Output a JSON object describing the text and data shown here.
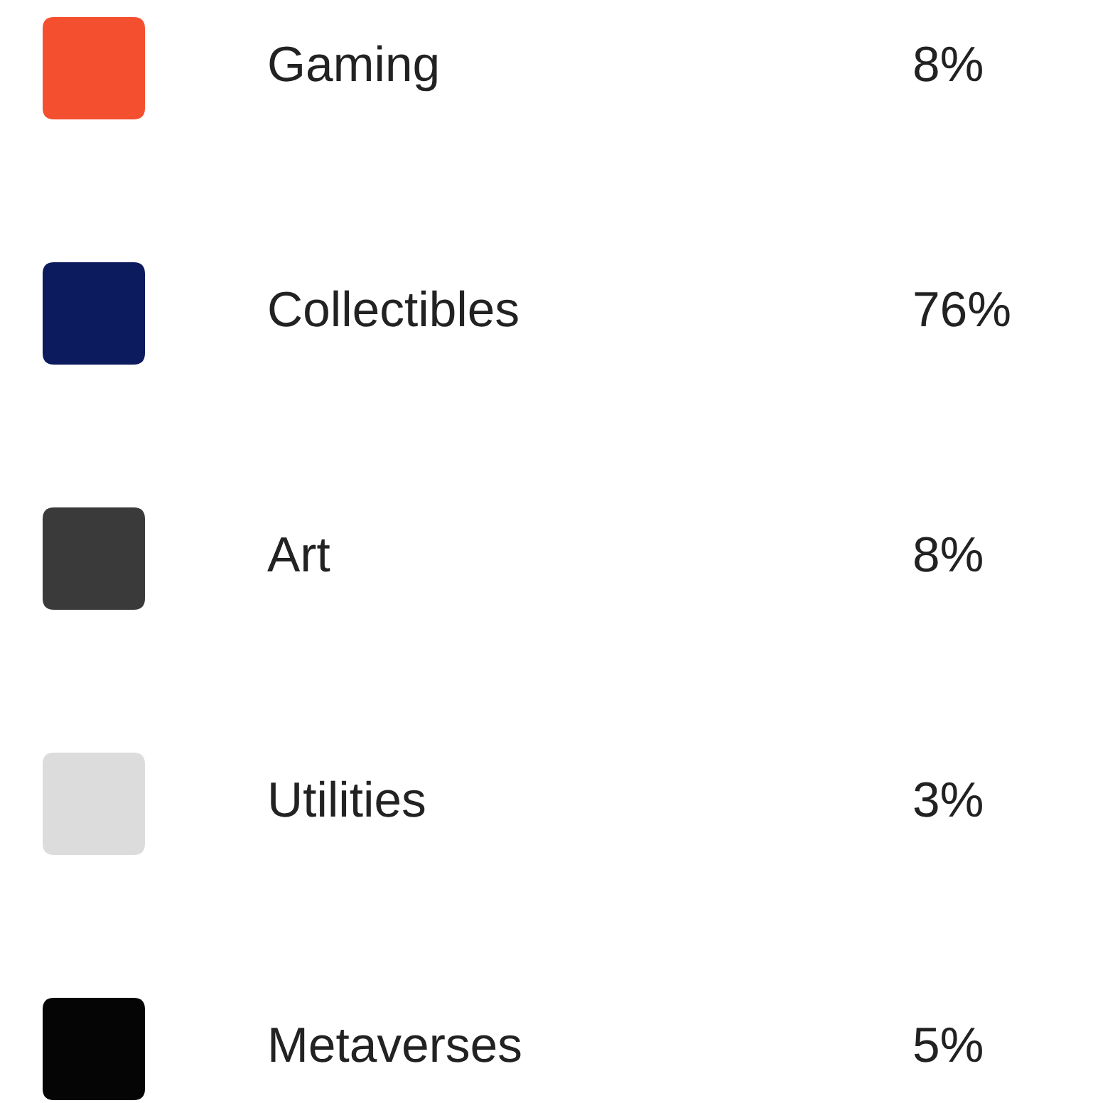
{
  "chart_data": {
    "type": "other",
    "categories": [
      "Gaming",
      "Collectibles",
      "Art",
      "Utilities",
      "Metaverses"
    ],
    "values": [
      8,
      76,
      8,
      3,
      5
    ],
    "value_labels": [
      "8%",
      "76%",
      "8%",
      "3%",
      "5%"
    ],
    "colors": [
      "#f4502f",
      "#0c1a5e",
      "#3a3a3a",
      "#dcdcdc",
      "#050505"
    ]
  }
}
